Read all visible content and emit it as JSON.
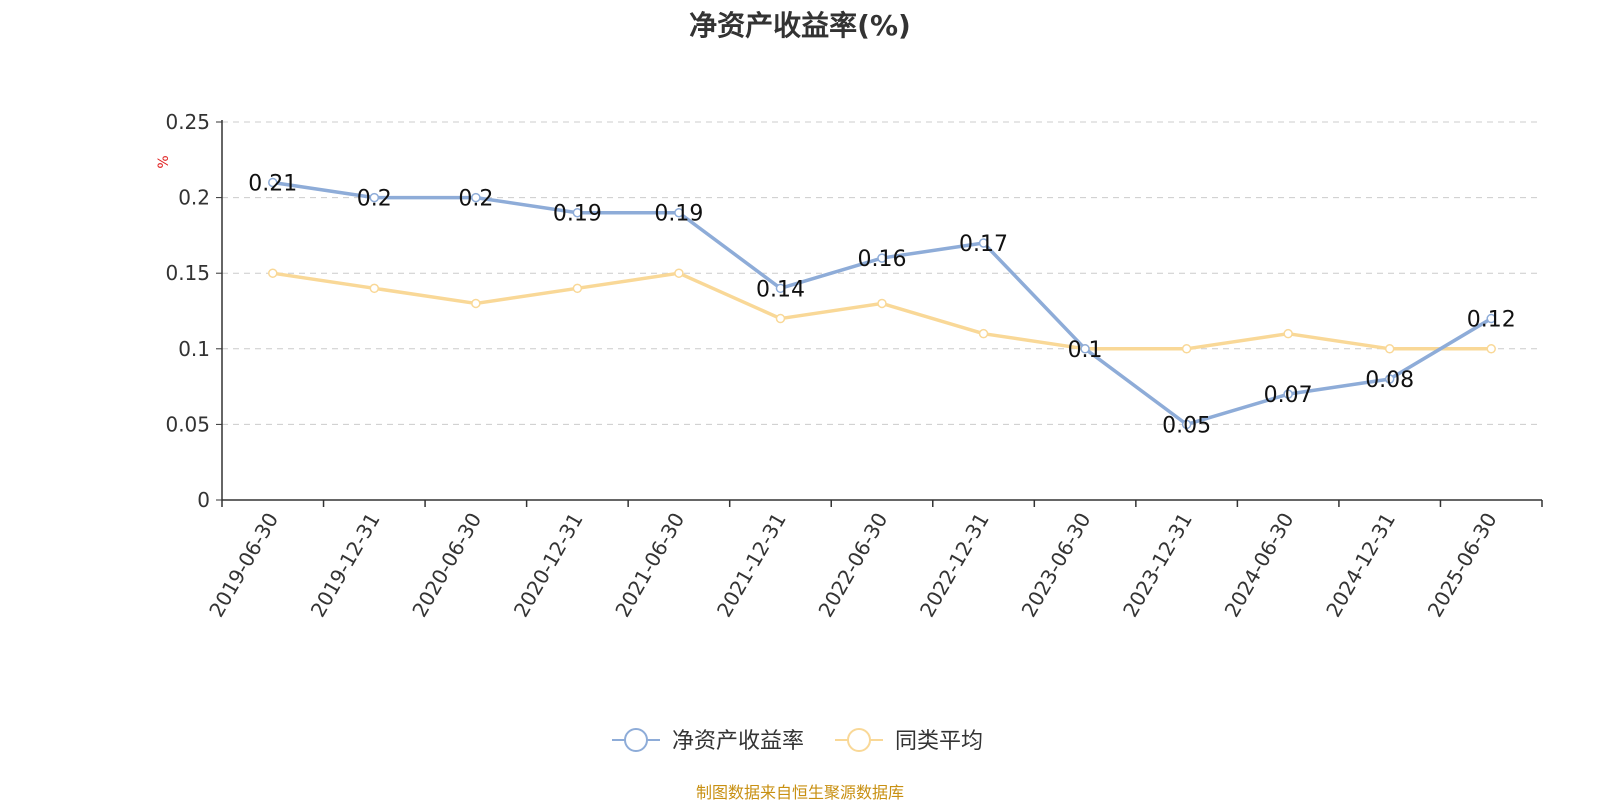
{
  "chart_data": {
    "type": "line",
    "title": "净资产收益率(%)",
    "ylabel": "%",
    "xlabel": "",
    "categories": [
      "2019-06-30",
      "2019-12-31",
      "2020-06-30",
      "2020-12-31",
      "2021-06-30",
      "2021-12-31",
      "2022-06-30",
      "2022-12-31",
      "2023-06-30",
      "2023-12-31",
      "2024-06-30",
      "2024-12-31",
      "2025-06-30"
    ],
    "ylim": [
      0,
      0.25
    ],
    "yticks": [
      "0",
      "0.05",
      "0.1",
      "0.15",
      "0.2",
      "0.25"
    ],
    "grid": true,
    "legend_position": "bottom-center",
    "series": [
      {
        "name": "净资产收益率",
        "color": "#8eacd8",
        "values": [
          0.21,
          0.2,
          0.2,
          0.19,
          0.19,
          0.14,
          0.16,
          0.17,
          0.1,
          0.05,
          0.07,
          0.08,
          0.12
        ],
        "labels": [
          "0.21",
          "0.2",
          "0.2",
          "0.19",
          "0.19",
          "0.14",
          "0.16",
          "0.17",
          "0.1",
          "0.05",
          "0.07",
          "0.08",
          "0.12"
        ]
      },
      {
        "name": "同类平均",
        "color": "#f9d897",
        "values": [
          0.15,
          0.14,
          0.13,
          0.14,
          0.15,
          0.12,
          0.13,
          0.11,
          0.1,
          0.1,
          0.11,
          0.1,
          0.1
        ]
      }
    ]
  },
  "source_note": "制图数据来自恒生聚源数据库"
}
